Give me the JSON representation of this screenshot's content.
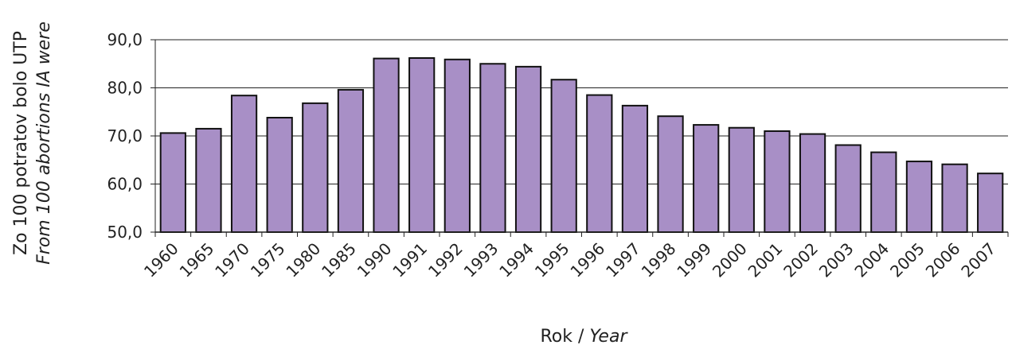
{
  "chart_data": {
    "type": "bar",
    "categories": [
      "1960",
      "1965",
      "1970",
      "1975",
      "1980",
      "1985",
      "1990",
      "1991",
      "1992",
      "1993",
      "1994",
      "1995",
      "1996",
      "1997",
      "1998",
      "1999",
      "2000",
      "2001",
      "2002",
      "2003",
      "2004",
      "2005",
      "2006",
      "2007"
    ],
    "values": [
      70.6,
      71.5,
      78.4,
      73.8,
      76.8,
      79.6,
      86.1,
      86.2,
      85.9,
      85.0,
      84.4,
      81.7,
      78.5,
      76.3,
      74.1,
      72.3,
      71.7,
      71.0,
      70.4,
      68.1,
      66.6,
      64.7,
      64.1,
      62.2
    ],
    "ylim": [
      50,
      90
    ],
    "yticks": [
      50,
      60,
      70,
      80,
      90
    ],
    "ytick_labels": [
      "50,0",
      "60,0",
      "70,0",
      "80,0",
      "90,0"
    ],
    "ylabel_line1": "Zo 100 potratov bolo UTP",
    "ylabel_line2": "From 100 abortions IA were",
    "xlabel_main": "Rok / ",
    "xlabel_italic": "Year",
    "grid": true,
    "bar_color": "#a88fc6",
    "bar_edge_color": "#111111",
    "grid_color": "#222222"
  }
}
